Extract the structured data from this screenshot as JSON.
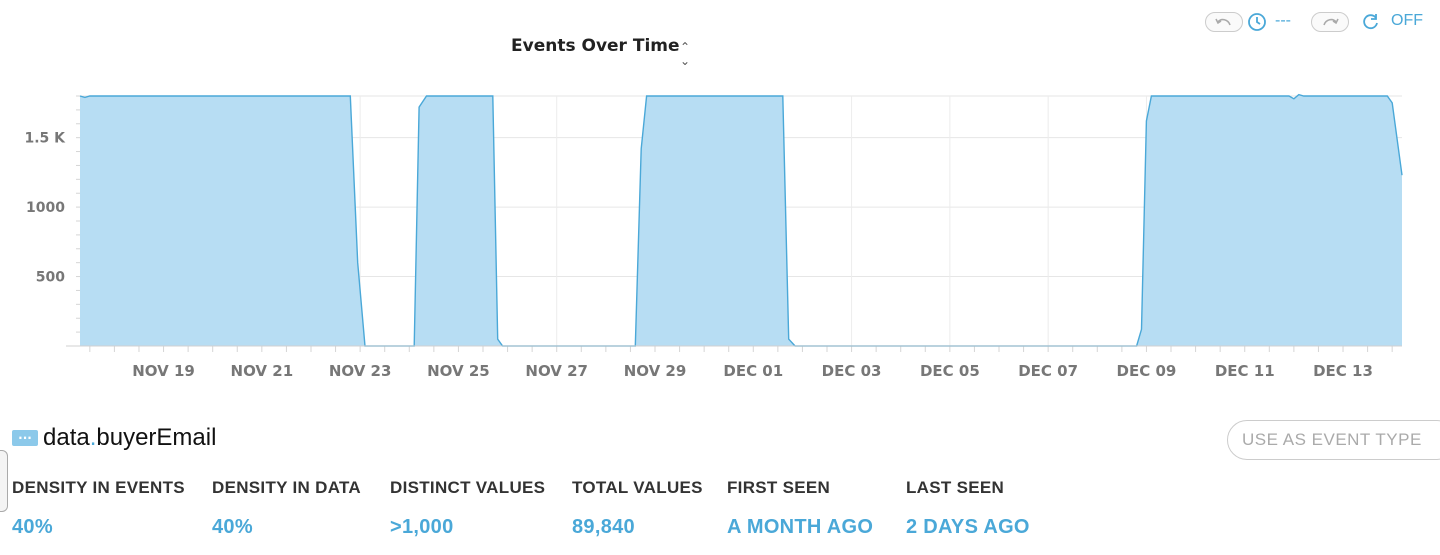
{
  "time_controls": {
    "range_text": "---",
    "live_text": "OFF",
    "accent": "#4aa8d8"
  },
  "chart_title": "Events Over Time",
  "chart_title_toggle_icon": "chevron-up-down-icon",
  "chart_data": {
    "type": "area",
    "title": "Events Over Time",
    "xlabel": "",
    "ylabel": "",
    "ylim": [
      0,
      1800
    ],
    "y_ticks": [
      {
        "value": 500,
        "label": "500"
      },
      {
        "value": 1000,
        "label": "1000"
      },
      {
        "value": 1500,
        "label": "1.5 K"
      }
    ],
    "x_ticks": [
      "NOV 19",
      "NOV 21",
      "NOV 23",
      "NOV 25",
      "NOV 27",
      "NOV 29",
      "DEC 01",
      "DEC 03",
      "DEC 05",
      "DEC 07",
      "DEC 09",
      "DEC 11",
      "DEC 13"
    ],
    "x_tick_days": [
      2,
      4,
      6,
      8,
      10,
      12,
      14,
      16,
      18,
      20,
      22,
      24,
      26
    ],
    "x_domain_days": [
      0.3,
      27.2
    ],
    "grid": true,
    "fill_color": "#b7ddf3",
    "line_color": "#4aa8d8",
    "series": [
      {
        "points": [
          [
            0.3,
            1800
          ],
          [
            0.4,
            1790
          ],
          [
            0.5,
            1800
          ],
          [
            5.8,
            1800
          ],
          [
            5.95,
            600
          ],
          [
            6.1,
            0
          ],
          [
            7.1,
            0
          ],
          [
            7.2,
            1720
          ],
          [
            7.35,
            1800
          ],
          [
            8.7,
            1800
          ],
          [
            8.8,
            50
          ],
          [
            8.9,
            0
          ],
          [
            11.6,
            0
          ],
          [
            11.72,
            1420
          ],
          [
            11.83,
            1800
          ],
          [
            14.6,
            1800
          ],
          [
            14.72,
            50
          ],
          [
            14.85,
            0
          ],
          [
            21.8,
            0
          ],
          [
            21.9,
            120
          ],
          [
            22.0,
            1620
          ],
          [
            22.1,
            1800
          ],
          [
            24.9,
            1800
          ],
          [
            25.0,
            1780
          ],
          [
            25.1,
            1810
          ],
          [
            25.2,
            1800
          ],
          [
            26.9,
            1800
          ],
          [
            27.0,
            1750
          ],
          [
            27.2,
            1230
          ]
        ]
      }
    ]
  },
  "field": {
    "icon": "ellipsis-field-icon",
    "name_prefix": "data",
    "name_suffix": "buyerEmail",
    "dot": "."
  },
  "use_as_event_type_label": "USE AS EVENT TYPE",
  "stats": [
    {
      "label": "DENSITY IN EVENTS",
      "value": "40%"
    },
    {
      "label": "DENSITY IN DATA",
      "value": "40%"
    },
    {
      "label": "DISTINCT VALUES",
      "value": ">1,000"
    },
    {
      "label": "TOTAL VALUES",
      "value": "89,840"
    },
    {
      "label": "FIRST SEEN",
      "value": "A MONTH AGO"
    },
    {
      "label": "LAST SEEN",
      "value": "2 DAYS AGO"
    }
  ]
}
